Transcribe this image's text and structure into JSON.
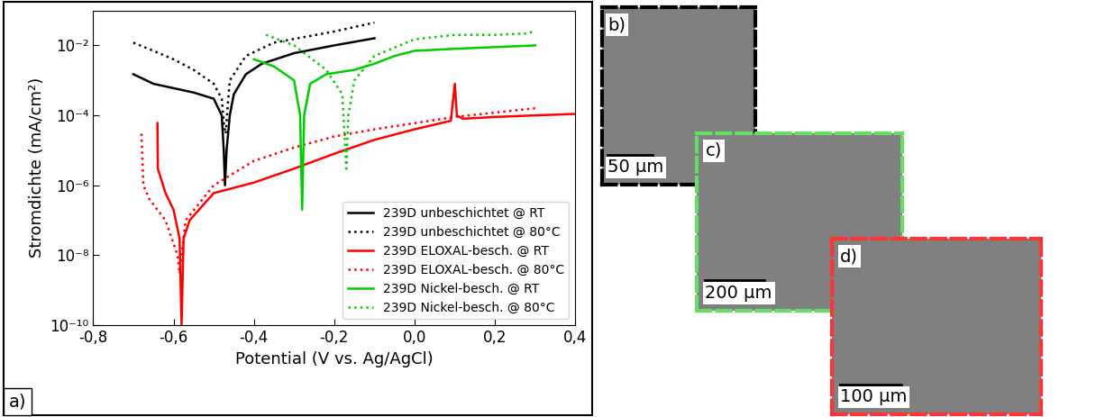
{
  "chart_data": {
    "type": "line",
    "annotations": [
      "a)"
    ],
    "x_label": "Potential (V vs. Ag/AgCl)",
    "y_label": "Stromdichte (mA/cm²)",
    "log": "y",
    "legend": "lower right",
    "xlim": [
      -0.8,
      0.4
    ],
    "xticks": [
      {
        "value": -0.8,
        "label": "-0,8"
      },
      {
        "value": -0.6,
        "label": "-0,6"
      },
      {
        "value": -0.4,
        "label": "-0,4"
      },
      {
        "value": -0.2,
        "label": "-0,2"
      },
      {
        "value": 0.0,
        "label": "0,0"
      },
      {
        "value": 0.2,
        "label": "0,2"
      },
      {
        "value": 0.4,
        "label": "0,4"
      }
    ],
    "ylim": [
      1e-10,
      0.1
    ],
    "yticks": [
      {
        "value": 1e-10,
        "label": "10⁻¹⁰"
      },
      {
        "value": 1e-08,
        "label": "10⁻⁸"
      },
      {
        "value": 1e-06,
        "label": "10⁻⁶"
      },
      {
        "value": 0.0001,
        "label": "10⁻⁴"
      },
      {
        "value": 0.01,
        "label": "10⁻²"
      }
    ],
    "series": [
      {
        "name": "239D unbeschichtet @ RT",
        "color": "#000000",
        "line_style": "solid",
        "x": [
          -0.7,
          -0.65,
          -0.6,
          -0.55,
          -0.5,
          -0.48,
          -0.475,
          -0.472,
          -0.468,
          -0.46,
          -0.45,
          -0.42,
          -0.38,
          -0.3,
          -0.2,
          -0.1
        ],
        "values": [
          0.0015,
          0.0008,
          0.0006,
          0.00045,
          0.0003,
          0.0001,
          1e-05,
          1e-06,
          1e-05,
          0.0001,
          0.0004,
          0.0015,
          0.003,
          0.006,
          0.01,
          0.016
        ]
      },
      {
        "name": "239D unbeschichtet @ 80°C",
        "color": "#000000",
        "line_style": "dotted",
        "x": [
          -0.7,
          -0.65,
          -0.6,
          -0.55,
          -0.5,
          -0.48,
          -0.474,
          -0.47,
          -0.465,
          -0.46,
          -0.42,
          -0.35,
          -0.2,
          -0.1
        ],
        "values": [
          0.012,
          0.007,
          0.004,
          0.002,
          0.0008,
          0.0003,
          5e-05,
          3e-05,
          0.0002,
          0.001,
          0.005,
          0.012,
          0.025,
          0.045
        ]
      },
      {
        "name": "239D ELOXAL-besch. @ RT",
        "color": "#ff0000",
        "line_style": "solid",
        "x": [
          -0.64,
          -0.639,
          -0.62,
          -0.6,
          -0.585,
          -0.58,
          -0.575,
          -0.56,
          -0.5,
          -0.4,
          -0.3,
          -0.2,
          -0.1,
          0.0,
          0.09,
          0.1,
          0.105,
          0.12,
          0.2,
          0.3,
          0.4
        ],
        "values": [
          6e-05,
          3e-06,
          6e-07,
          2e-07,
          3e-08,
          1e-10,
          3e-08,
          1e-07,
          6e-07,
          1.2e-06,
          3e-06,
          8e-06,
          2e-05,
          4e-05,
          7e-05,
          0.0008,
          0.0001,
          8e-05,
          9e-05,
          0.0001,
          0.00011
        ]
      },
      {
        "name": "239D ELOXAL-besch. @ 80°C",
        "color": "#ff0000",
        "line_style": "dotted",
        "x": [
          -0.68,
          -0.675,
          -0.66,
          -0.62,
          -0.59,
          -0.585,
          -0.57,
          -0.5,
          -0.4,
          -0.3,
          -0.2,
          -0.1,
          0.0,
          0.1,
          0.2,
          0.3
        ],
        "values": [
          3e-05,
          1e-06,
          4e-07,
          1e-07,
          1e-08,
          3e-09,
          1e-07,
          1e-06,
          5e-06,
          1.2e-05,
          2.5e-05,
          4e-05,
          6e-05,
          9e-05,
          0.00012,
          0.00016
        ]
      },
      {
        "name": "239D Nickel-besch. @ RT",
        "color": "#00cc00",
        "line_style": "solid",
        "x": [
          -0.4,
          -0.35,
          -0.3,
          -0.285,
          -0.28,
          -0.275,
          -0.26,
          -0.22,
          -0.15,
          -0.1,
          -0.05,
          0.0,
          0.1,
          0.3
        ],
        "values": [
          0.004,
          0.0025,
          0.001,
          0.0001,
          2e-07,
          0.0001,
          0.0008,
          0.0015,
          0.002,
          0.003,
          0.005,
          0.007,
          0.008,
          0.01
        ]
      },
      {
        "name": "239D Nickel-besch. @ 80°C",
        "color": "#00cc00",
        "line_style": "dotted",
        "x": [
          -0.37,
          -0.3,
          -0.22,
          -0.18,
          -0.17,
          -0.165,
          -0.15,
          -0.1,
          0.0,
          0.1,
          0.2,
          0.28,
          0.3
        ],
        "values": [
          0.02,
          0.01,
          0.002,
          0.0004,
          3e-06,
          0.0001,
          0.001,
          0.005,
          0.015,
          0.02,
          0.02,
          0.022,
          0.026
        ]
      }
    ]
  },
  "images": [
    {
      "label": "b)",
      "scale_bar": "50 µm",
      "color": "#000000",
      "line_style": "dashed"
    },
    {
      "label": "c)",
      "scale_bar": "200 µm",
      "color": "#66dd66",
      "line_style": "dashed"
    },
    {
      "label": "d)",
      "scale_bar": "100 µm",
      "color": "#ff3333",
      "line_style": "dashed"
    }
  ]
}
